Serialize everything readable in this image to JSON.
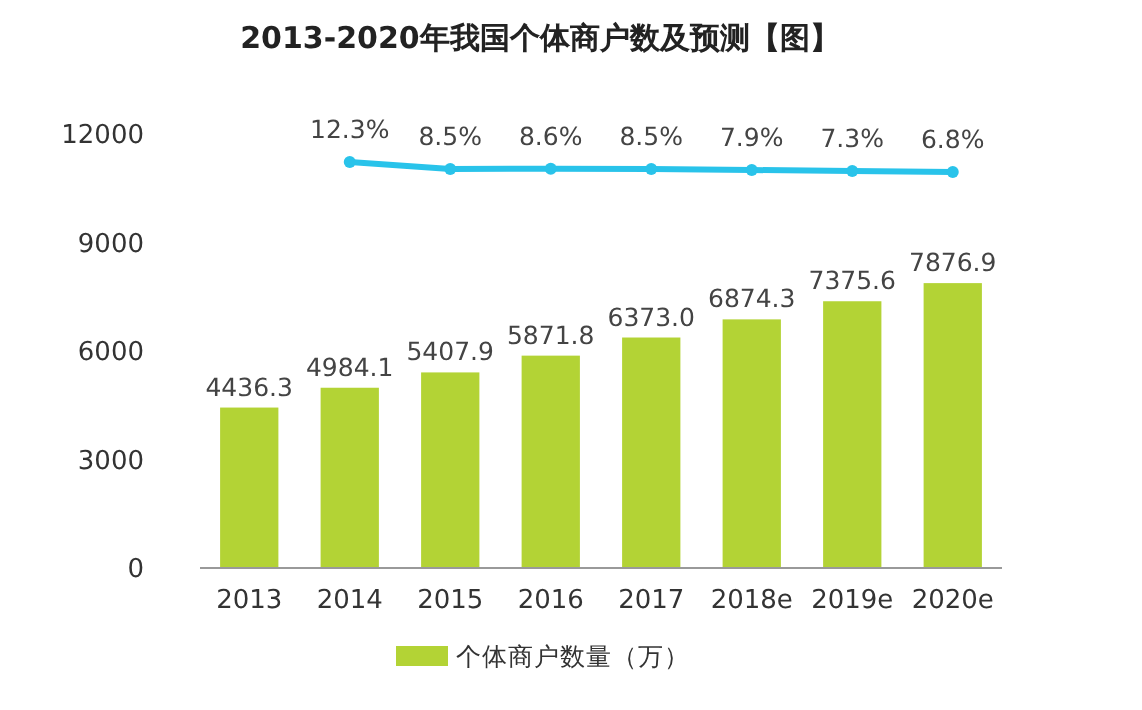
{
  "chart_data": {
    "type": "bar",
    "title": "2013-2020年我国个体商户数及预测【图】",
    "categories": [
      "2013",
      "2014",
      "2015",
      "2016",
      "2017",
      "2018e",
      "2019e",
      "2020e"
    ],
    "series": [
      {
        "name": "个体商户数量（万）",
        "color": "#b3d335",
        "values": [
          4436.3,
          4984.1,
          5407.9,
          5871.8,
          6373.0,
          6874.3,
          7375.6,
          7876.9
        ],
        "value_labels": [
          "4436.3",
          "4984.1",
          "5407.9",
          "5871.8",
          "6373.0",
          "6874.3",
          "7375.6",
          "7876.9"
        ]
      },
      {
        "type": "line",
        "axis": "y2",
        "color": "#29c3ea",
        "marker": "circle",
        "values": [
          null,
          12.3,
          8.5,
          8.6,
          8.5,
          7.9,
          7.3,
          6.8
        ],
        "value_labels": [
          null,
          "12.3%",
          "8.5%",
          "8.6%",
          "8.5%",
          "7.9%",
          "7.3%",
          "6.8%"
        ]
      }
    ],
    "ylim": [
      0,
      12000
    ],
    "yticks": [
      0,
      3000,
      6000,
      9000,
      12000
    ],
    "grid": false,
    "legend": "bottom",
    "data_labels": true
  }
}
